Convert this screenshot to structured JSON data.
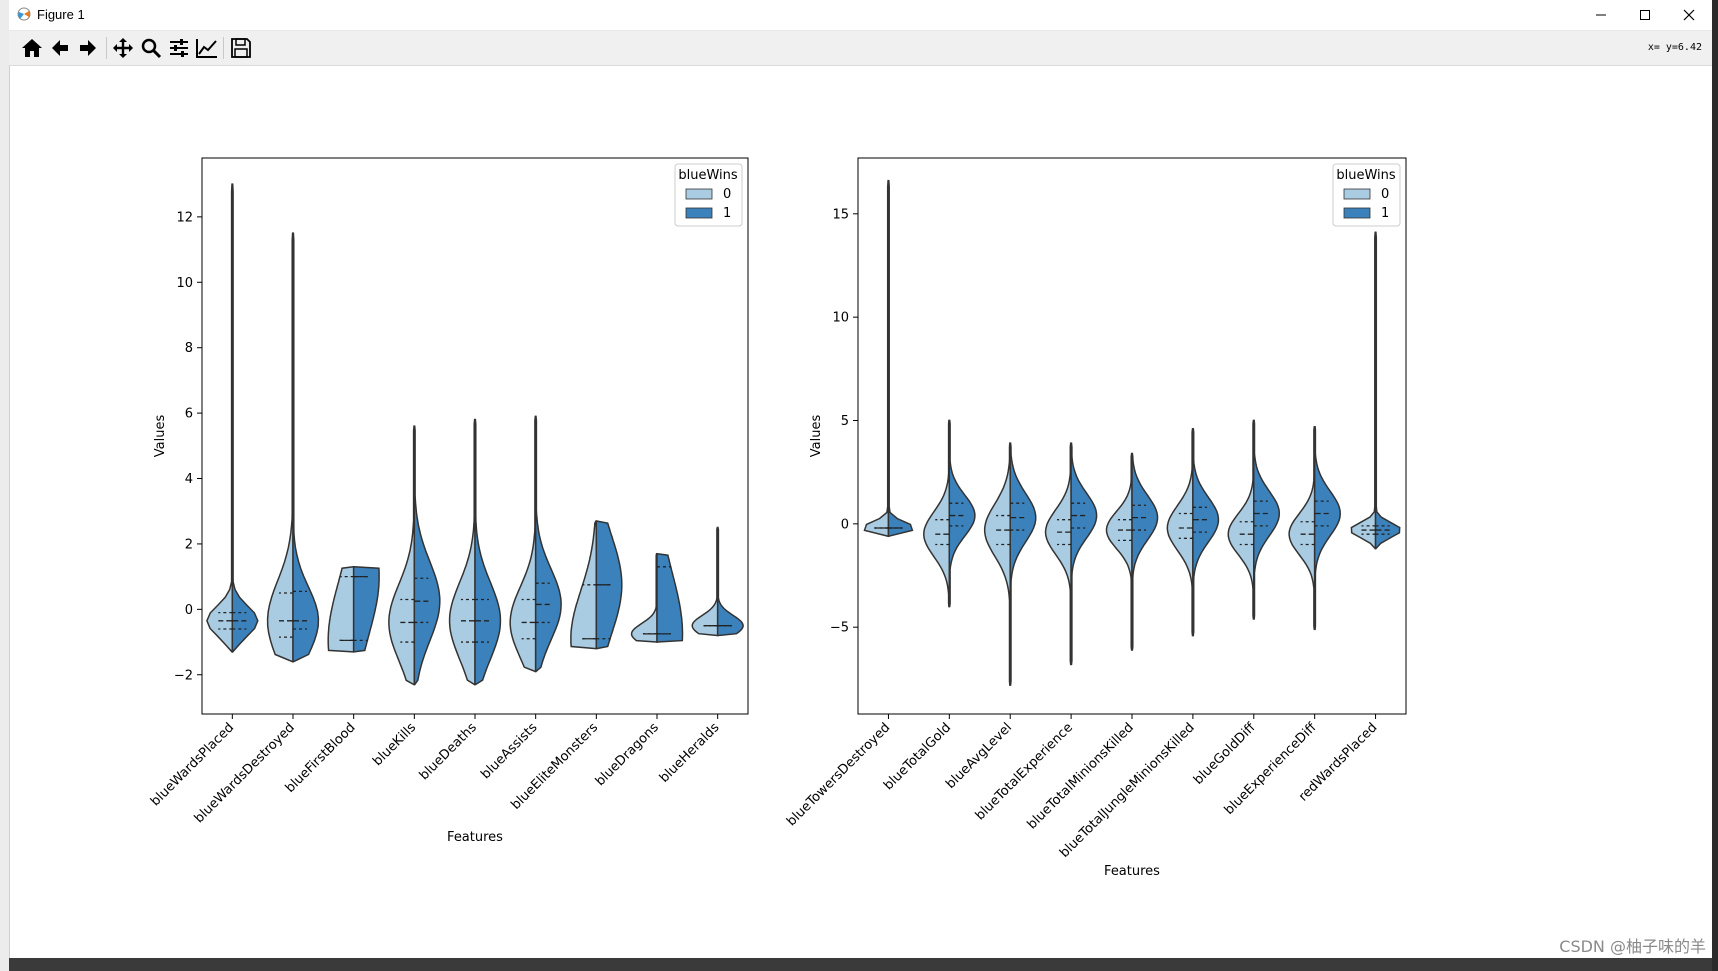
{
  "window": {
    "title": "Figure 1",
    "coords": "x= y=6.42"
  },
  "toolbar": {
    "buttons": [
      {
        "name": "home-button",
        "icon": "home-icon"
      },
      {
        "name": "back-button",
        "icon": "back-arrow-icon"
      },
      {
        "name": "forward-button",
        "icon": "forward-arrow-icon"
      },
      {
        "name": "pan-button",
        "icon": "move-icon"
      },
      {
        "name": "zoom-button",
        "icon": "zoom-icon"
      },
      {
        "name": "subplots-button",
        "icon": "sliders-icon"
      },
      {
        "name": "edit-axes-button",
        "icon": "line-chart-icon"
      },
      {
        "name": "save-button",
        "icon": "save-icon"
      }
    ]
  },
  "watermark": "CSDN @柚子味的羊",
  "colors": {
    "class0": "#a9cce3",
    "class1": "#3b82bd",
    "edge": "#333333"
  },
  "chart_data": [
    {
      "type": "violin",
      "xlabel": "Features",
      "ylabel": "Values",
      "ylim": [
        -3.2,
        13.8
      ],
      "yticks": [
        -2,
        0,
        2,
        4,
        6,
        8,
        10,
        12
      ],
      "legend": {
        "title": "blueWins",
        "entries": [
          "0",
          "1"
        ],
        "placement": "top-right"
      },
      "categories": [
        "blueWardsPlaced",
        "blueWardsDestroyed",
        "blueFirstBlood",
        "blueKills",
        "blueDeaths",
        "blueAssists",
        "blueEliteMonsters",
        "blueDragons",
        "blueHeralds"
      ],
      "series": [
        {
          "name": "0",
          "min": [
            -1.3,
            -1.6,
            -1.3,
            -2.3,
            -2.3,
            -1.9,
            -1.2,
            -1.0,
            -0.8
          ],
          "max": [
            13.0,
            11.5,
            1.3,
            5.6,
            5.8,
            5.9,
            2.7,
            1.7,
            2.5
          ],
          "median": [
            -0.35,
            -0.35,
            -0.95,
            -0.4,
            -0.35,
            -0.4,
            -0.9,
            -0.75,
            -0.5
          ],
          "q1": [
            -0.6,
            -0.85,
            -0.95,
            -1.0,
            -1.0,
            -0.9,
            -0.9,
            -0.75,
            -0.5
          ],
          "q3": [
            -0.1,
            0.5,
            1.0,
            0.3,
            0.3,
            0.3,
            0.75,
            -0.75,
            -0.5
          ]
        },
        {
          "name": "1",
          "min": [
            -1.3,
            -1.6,
            -1.3,
            -2.3,
            -2.3,
            -1.9,
            -1.2,
            -1.0,
            -0.8
          ],
          "max": [
            13.0,
            11.5,
            1.3,
            5.6,
            5.8,
            5.9,
            2.7,
            1.7,
            2.5
          ],
          "median": [
            -0.35,
            -0.35,
            1.0,
            0.25,
            -0.35,
            0.15,
            0.75,
            -0.75,
            -0.5
          ],
          "q1": [
            -0.6,
            -0.6,
            -0.95,
            -0.4,
            -1.0,
            -0.4,
            -0.9,
            -0.75,
            -0.5
          ],
          "q3": [
            -0.1,
            0.55,
            1.0,
            0.95,
            0.3,
            0.8,
            0.75,
            1.3,
            -0.5
          ]
        }
      ]
    },
    {
      "type": "violin",
      "xlabel": "Features",
      "ylabel": "Values",
      "ylim": [
        -9.2,
        17.7
      ],
      "yticks": [
        -5,
        0,
        5,
        10,
        15
      ],
      "legend": {
        "title": "blueWins",
        "entries": [
          "0",
          "1"
        ],
        "placement": "top-right"
      },
      "categories": [
        "blueTowersDestroyed",
        "blueTotalGold",
        "blueAvgLevel",
        "blueTotalExperience",
        "blueTotalMinionsKilled",
        "blueTotalJungleMinionsKilled",
        "blueGoldDiff",
        "blueExperienceDiff",
        "redWardsPlaced"
      ],
      "series": [
        {
          "name": "0",
          "min": [
            -0.6,
            -4.0,
            -7.8,
            -6.8,
            -6.1,
            -5.4,
            -4.6,
            -5.1,
            -1.2
          ],
          "max": [
            16.6,
            5.0,
            3.9,
            3.9,
            3.4,
            4.6,
            5.0,
            4.7,
            14.1
          ],
          "median": [
            -0.2,
            -0.5,
            -0.3,
            -0.4,
            -0.3,
            -0.2,
            -0.5,
            -0.5,
            -0.3
          ],
          "q1": [
            -0.2,
            -1.0,
            -1.0,
            -1.0,
            -0.8,
            -0.7,
            -1.0,
            -1.0,
            -0.5
          ],
          "q3": [
            -0.2,
            0.2,
            0.4,
            0.2,
            0.2,
            0.5,
            0.1,
            0.1,
            -0.1
          ]
        },
        {
          "name": "1",
          "min": [
            -0.6,
            -4.0,
            -7.8,
            -6.8,
            -6.1,
            -5.4,
            -4.6,
            -5.1,
            -1.2
          ],
          "max": [
            16.6,
            5.0,
            3.9,
            3.9,
            3.4,
            4.6,
            5.0,
            4.7,
            14.1
          ],
          "median": [
            -0.2,
            0.4,
            0.3,
            0.4,
            0.3,
            0.2,
            0.5,
            0.5,
            -0.3
          ],
          "q1": [
            -0.2,
            -0.1,
            -0.3,
            -0.2,
            -0.3,
            -0.4,
            -0.1,
            -0.1,
            -0.5
          ],
          "q3": [
            -0.2,
            1.0,
            1.0,
            1.0,
            0.9,
            0.8,
            1.1,
            1.1,
            -0.1
          ]
        }
      ]
    }
  ]
}
